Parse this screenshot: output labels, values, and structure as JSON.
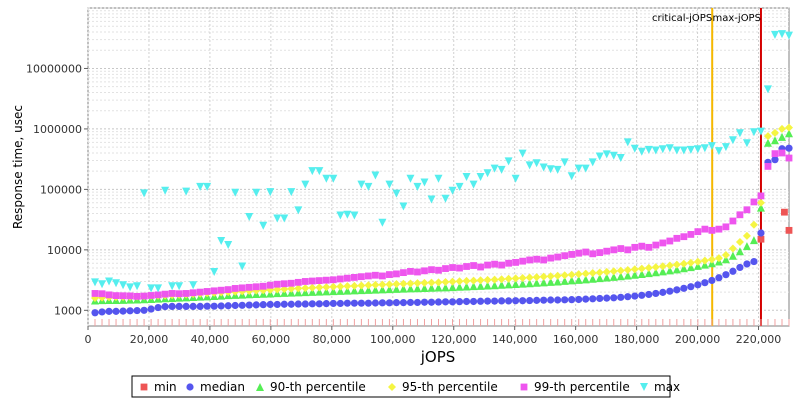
{
  "chart_data": {
    "type": "scatter",
    "title": "",
    "xlabel": "jOPS",
    "ylabel": "Response time, usec",
    "xlim": [
      0,
      230000
    ],
    "ylim": [
      550,
      100000000
    ],
    "yscale": "log",
    "grid": true,
    "legend_position": "bottom",
    "x_ticks": [
      0,
      20000,
      40000,
      60000,
      80000,
      100000,
      120000,
      140000,
      160000,
      180000,
      200000,
      220000
    ],
    "x_tick_labels": [
      "0",
      "20,000",
      "40,000",
      "60,000",
      "80,000",
      "100,000",
      "120,000",
      "140,000",
      "160,000",
      "180,000",
      "200,000",
      "220,000"
    ],
    "y_ticks": [
      1000,
      10000,
      100000,
      1000000,
      10000000
    ],
    "y_tick_labels": [
      "1000",
      "10000",
      "100000",
      "1000000",
      "10000000"
    ],
    "markers": [
      {
        "label": "critical-jOPS",
        "x": 204800,
        "color": "#f5b800"
      },
      {
        "label": "max-jOPS",
        "x": 220800,
        "color": "#d40000"
      }
    ],
    "series": [
      {
        "name": "min",
        "color": "#ee5555",
        "shape": "square",
        "x": [
          220800,
          228500,
          230000
        ],
        "y": [
          15000,
          42000,
          21000
        ]
      },
      {
        "name": "median",
        "color": "#5555ee",
        "shape": "circle",
        "x": [
          2300,
          4600,
          6900,
          9200,
          11500,
          13800,
          16100,
          18400,
          20700,
          23000,
          25300,
          27600,
          29900,
          32200,
          34500,
          36800,
          39100,
          41400,
          43700,
          46000,
          48300,
          50600,
          52900,
          55200,
          57500,
          59800,
          62100,
          64400,
          66700,
          69000,
          71300,
          73600,
          75900,
          78200,
          80500,
          82800,
          85100,
          87400,
          89700,
          92000,
          94300,
          96600,
          98900,
          101200,
          103500,
          105800,
          108100,
          110400,
          112700,
          115000,
          117300,
          119600,
          121900,
          124200,
          126500,
          128800,
          131100,
          133400,
          135700,
          138000,
          140300,
          142600,
          144900,
          147200,
          149500,
          151800,
          154100,
          156400,
          158700,
          161000,
          163300,
          165600,
          167900,
          170200,
          172500,
          174800,
          177100,
          179400,
          181700,
          184000,
          186300,
          188600,
          190900,
          193200,
          195500,
          197800,
          200100,
          202400,
          204700,
          207000,
          209300,
          211600,
          213900,
          216200,
          218500,
          220800,
          223100,
          225400,
          227700,
          230000
        ],
        "y": [
          910,
          940,
          960,
          960,
          970,
          980,
          990,
          1000,
          1050,
          1110,
          1150,
          1160,
          1160,
          1160,
          1160,
          1160,
          1170,
          1170,
          1180,
          1190,
          1200,
          1210,
          1220,
          1230,
          1240,
          1250,
          1250,
          1260,
          1260,
          1270,
          1270,
          1280,
          1280,
          1290,
          1300,
          1300,
          1310,
          1310,
          1310,
          1310,
          1320,
          1330,
          1330,
          1340,
          1340,
          1350,
          1350,
          1360,
          1360,
          1370,
          1380,
          1380,
          1390,
          1400,
          1400,
          1410,
          1420,
          1420,
          1430,
          1430,
          1440,
          1440,
          1450,
          1460,
          1470,
          1480,
          1480,
          1490,
          1500,
          1510,
          1530,
          1550,
          1570,
          1590,
          1610,
          1640,
          1680,
          1720,
          1770,
          1830,
          1900,
          1980,
          2070,
          2180,
          2310,
          2460,
          2640,
          2860,
          3120,
          3450,
          3880,
          4420,
          5120,
          5840,
          6400,
          19000,
          280000,
          310000,
          470000,
          480000
        ]
      },
      {
        "name": "90-th percentile",
        "color": "#55ee55",
        "shape": "triangle-up",
        "x": [
          2300,
          4600,
          6900,
          9200,
          11500,
          13800,
          16100,
          18400,
          20700,
          23000,
          25300,
          27600,
          29900,
          32200,
          34500,
          36800,
          39100,
          41400,
          43700,
          46000,
          48300,
          50600,
          52900,
          55200,
          57500,
          59800,
          62100,
          64400,
          66700,
          69000,
          71300,
          73600,
          75900,
          78200,
          80500,
          82800,
          85100,
          87400,
          89700,
          92000,
          94300,
          96600,
          98900,
          101200,
          103500,
          105800,
          108100,
          110400,
          112700,
          115000,
          117300,
          119600,
          121900,
          124200,
          126500,
          128800,
          131100,
          133400,
          135700,
          138000,
          140300,
          142600,
          144900,
          147200,
          149500,
          151800,
          154100,
          156400,
          158700,
          161000,
          163300,
          165600,
          167900,
          170200,
          172500,
          174800,
          177100,
          179400,
          181700,
          184000,
          186300,
          188600,
          190900,
          193200,
          195500,
          197800,
          200100,
          202400,
          204700,
          207000,
          209300,
          211600,
          213900,
          216200,
          218500,
          220800,
          223100,
          225400,
          227700,
          230000
        ],
        "y": [
          1450,
          1470,
          1480,
          1480,
          1490,
          1500,
          1510,
          1520,
          1540,
          1560,
          1580,
          1600,
          1620,
          1640,
          1660,
          1680,
          1700,
          1720,
          1750,
          1780,
          1800,
          1820,
          1840,
          1860,
          1880,
          1900,
          1920,
          1940,
          1960,
          1980,
          2000,
          2020,
          2040,
          2060,
          2080,
          2100,
          2120,
          2140,
          2160,
          2180,
          2200,
          2220,
          2240,
          2260,
          2280,
          2300,
          2320,
          2340,
          2360,
          2380,
          2400,
          2420,
          2450,
          2480,
          2510,
          2540,
          2570,
          2600,
          2640,
          2680,
          2720,
          2760,
          2800,
          2850,
          2900,
          2950,
          3000,
          3060,
          3120,
          3180,
          3250,
          3320,
          3400,
          3480,
          3570,
          3660,
          3760,
          3870,
          3990,
          4120,
          4260,
          4410,
          4580,
          4760,
          4960,
          5180,
          5420,
          5690,
          6000,
          6400,
          7000,
          8000,
          9500,
          11500,
          14500,
          50000,
          590000,
          650000,
          740000,
          850000
        ]
      },
      {
        "name": "95-th percentile",
        "color": "#f5f542",
        "shape": "diamond",
        "x": [
          2300,
          4600,
          6900,
          9200,
          11500,
          13800,
          16100,
          18400,
          20700,
          23000,
          25300,
          27600,
          29900,
          32200,
          34500,
          36800,
          39100,
          41400,
          43700,
          46000,
          48300,
          50600,
          52900,
          55200,
          57500,
          59800,
          62100,
          64400,
          66700,
          69000,
          71300,
          73600,
          75900,
          78200,
          80500,
          82800,
          85100,
          87400,
          89700,
          92000,
          94300,
          96600,
          98900,
          101200,
          103500,
          105800,
          108100,
          110400,
          112700,
          115000,
          117300,
          119600,
          121900,
          124200,
          126500,
          128800,
          131100,
          133400,
          135700,
          138000,
          140300,
          142600,
          144900,
          147200,
          149500,
          151800,
          154100,
          156400,
          158700,
          161000,
          163300,
          165600,
          167900,
          170200,
          172500,
          174800,
          177100,
          179400,
          181700,
          184000,
          186300,
          188600,
          190900,
          193200,
          195500,
          197800,
          200100,
          202400,
          204700,
          207000,
          209300,
          211600,
          213900,
          216200,
          218500,
          220800,
          223100,
          225400,
          227700,
          230000
        ],
        "y": [
          1600,
          1620,
          1640,
          1650,
          1660,
          1670,
          1680,
          1700,
          1720,
          1740,
          1760,
          1780,
          1800,
          1820,
          1850,
          1880,
          1910,
          1940,
          1970,
          2000,
          2030,
          2060,
          2090,
          2120,
          2150,
          2180,
          2210,
          2240,
          2270,
          2300,
          2330,
          2360,
          2390,
          2420,
          2450,
          2480,
          2510,
          2540,
          2570,
          2600,
          2630,
          2660,
          2690,
          2720,
          2750,
          2780,
          2810,
          2840,
          2870,
          2900,
          2940,
          2980,
          3020,
          3060,
          3100,
          3140,
          3180,
          3220,
          3270,
          3320,
          3370,
          3420,
          3480,
          3540,
          3600,
          3660,
          3730,
          3800,
          3880,
          3960,
          4040,
          4130,
          4220,
          4320,
          4420,
          4530,
          4650,
          4770,
          4900,
          5040,
          5190,
          5350,
          5520,
          5700,
          5900,
          6120,
          6360,
          6630,
          6930,
          7300,
          8200,
          10500,
          13500,
          17000,
          26000,
          60000,
          760000,
          860000,
          1000000,
          1050000
        ]
      },
      {
        "name": "99-th percentile",
        "color": "#ee55ee",
        "shape": "square",
        "x": [
          2300,
          4600,
          6900,
          9200,
          11500,
          13800,
          16100,
          18400,
          20700,
          23000,
          25300,
          27600,
          29900,
          32200,
          34500,
          36800,
          39100,
          41400,
          43700,
          46000,
          48300,
          50600,
          52900,
          55200,
          57500,
          59800,
          62100,
          64400,
          66700,
          69000,
          71300,
          73600,
          75900,
          78200,
          80500,
          82800,
          85100,
          87400,
          89700,
          92000,
          94300,
          96600,
          98900,
          101200,
          103500,
          105800,
          108100,
          110400,
          112700,
          115000,
          117300,
          119600,
          121900,
          124200,
          126500,
          128800,
          131100,
          133400,
          135700,
          138000,
          140300,
          142600,
          144900,
          147200,
          149500,
          151800,
          154100,
          156400,
          158700,
          161000,
          163300,
          165600,
          167900,
          170200,
          172500,
          174800,
          177100,
          179400,
          181700,
          184000,
          186300,
          188600,
          190900,
          193200,
          195500,
          197800,
          200100,
          202400,
          204700,
          207000,
          209300,
          211600,
          213900,
          216200,
          218500,
          220800,
          223100,
          225400,
          227700,
          230000
        ],
        "y": [
          1900,
          1880,
          1800,
          1750,
          1740,
          1730,
          1700,
          1720,
          1760,
          1800,
          1850,
          1900,
          1880,
          1900,
          1950,
          2000,
          2050,
          2100,
          2150,
          2200,
          2300,
          2350,
          2400,
          2450,
          2500,
          2600,
          2700,
          2750,
          2800,
          2900,
          3000,
          3050,
          3100,
          3150,
          3200,
          3300,
          3400,
          3500,
          3600,
          3700,
          3800,
          3700,
          3900,
          4000,
          4200,
          4400,
          4300,
          4500,
          4700,
          4600,
          4900,
          5100,
          5000,
          5300,
          5500,
          5200,
          5600,
          5800,
          5600,
          6000,
          6200,
          6500,
          6800,
          7000,
          6800,
          7300,
          7600,
          8000,
          8400,
          8800,
          9200,
          8600,
          9000,
          9500,
          10000,
          10500,
          10000,
          11000,
          11500,
          11000,
          12000,
          13000,
          14000,
          15500,
          16500,
          18000,
          20000,
          22000,
          21000,
          22000,
          24000,
          30000,
          38000,
          46000,
          62000,
          78000,
          240000,
          390000,
          400000,
          330000
        ]
      },
      {
        "name": "max",
        "color": "#55eeee",
        "shape": "triangle-down",
        "x": [
          2300,
          4600,
          6900,
          9200,
          11500,
          13800,
          16100,
          18400,
          20700,
          23000,
          25300,
          27600,
          29900,
          32200,
          34500,
          36800,
          39100,
          41400,
          43700,
          46000,
          48300,
          50600,
          52900,
          55200,
          57500,
          59800,
          62100,
          64400,
          66700,
          69000,
          71300,
          73600,
          75900,
          78200,
          80500,
          82800,
          85100,
          87400,
          89700,
          92000,
          94300,
          96600,
          98900,
          101200,
          103500,
          105800,
          108100,
          110400,
          112700,
          115000,
          117300,
          119600,
          121900,
          124200,
          126500,
          128800,
          131100,
          133400,
          135700,
          138000,
          140300,
          142600,
          144900,
          147200,
          149500,
          151800,
          154100,
          156400,
          158700,
          161000,
          163300,
          165600,
          167900,
          170200,
          172500,
          174800,
          177100,
          179400,
          181700,
          184000,
          186300,
          188600,
          190900,
          193200,
          195500,
          197800,
          200100,
          202400,
          204700,
          207000,
          209300,
          211600,
          213900,
          216200,
          218500,
          220800,
          223100,
          225400,
          227700,
          230000
        ],
        "y": [
          2900,
          2700,
          3000,
          2800,
          2600,
          2400,
          2500,
          86000,
          2300,
          2300,
          95000,
          2500,
          2500,
          92000,
          2600,
          110000,
          110000,
          4300,
          14000,
          12000,
          88000,
          5300,
          35000,
          88000,
          25000,
          90000,
          33000,
          33000,
          90000,
          45000,
          120000,
          200000,
          200000,
          150000,
          150000,
          37000,
          38000,
          37000,
          120000,
          110000,
          170000,
          28000,
          120000,
          85000,
          52000,
          150000,
          110000,
          130000,
          68000,
          150000,
          70000,
          95000,
          110000,
          160000,
          120000,
          160000,
          185000,
          220000,
          210000,
          290000,
          150000,
          390000,
          250000,
          270000,
          230000,
          215000,
          210000,
          280000,
          165000,
          220000,
          220000,
          280000,
          350000,
          380000,
          360000,
          330000,
          600000,
          470000,
          420000,
          450000,
          440000,
          460000,
          480000,
          440000,
          440000,
          450000,
          460000,
          480000,
          520000,
          430000,
          500000,
          650000,
          850000,
          580000,
          880000,
          900000,
          4500000,
          36000000,
          37000000,
          35000000
        ]
      }
    ]
  }
}
